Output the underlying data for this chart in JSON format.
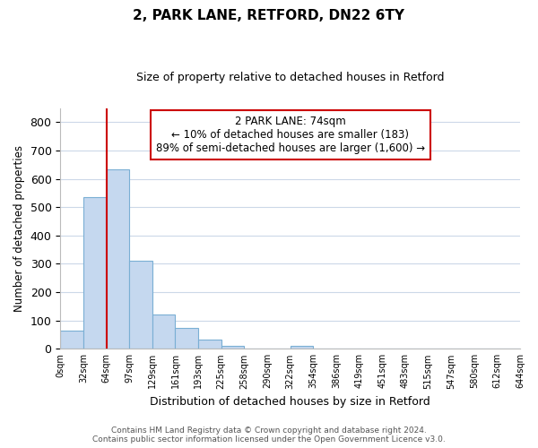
{
  "title1": "2, PARK LANE, RETFORD, DN22 6TY",
  "title2": "Size of property relative to detached houses in Retford",
  "xlabel": "Distribution of detached houses by size in Retford",
  "ylabel": "Number of detached properties",
  "bar_labels": [
    "0sqm",
    "32sqm",
    "64sqm",
    "97sqm",
    "129sqm",
    "161sqm",
    "193sqm",
    "225sqm",
    "258sqm",
    "290sqm",
    "322sqm",
    "354sqm",
    "386sqm",
    "419sqm",
    "451sqm",
    "483sqm",
    "515sqm",
    "547sqm",
    "580sqm",
    "612sqm",
    "644sqm"
  ],
  "bar_values": [
    65,
    535,
    635,
    310,
    120,
    75,
    32,
    12,
    0,
    0,
    10,
    0,
    0,
    0,
    0,
    0,
    0,
    0,
    0,
    0
  ],
  "bar_color": "#c5d8ef",
  "bar_edge_color": "#7aafd4",
  "vline_x": 2.0,
  "vline_color": "#cc0000",
  "ylim": [
    0,
    850
  ],
  "yticks": [
    0,
    100,
    200,
    300,
    400,
    500,
    600,
    700,
    800
  ],
  "annotation_title": "2 PARK LANE: 74sqm",
  "annotation_line1": "← 10% of detached houses are smaller (183)",
  "annotation_line2": "89% of semi-detached houses are larger (1,600) →",
  "annotation_box_color": "#ffffff",
  "annotation_box_edge": "#cc0000",
  "footer1": "Contains HM Land Registry data © Crown copyright and database right 2024.",
  "footer2": "Contains public sector information licensed under the Open Government Licence v3.0.",
  "background_color": "#ffffff",
  "grid_color": "#ccd8e8"
}
